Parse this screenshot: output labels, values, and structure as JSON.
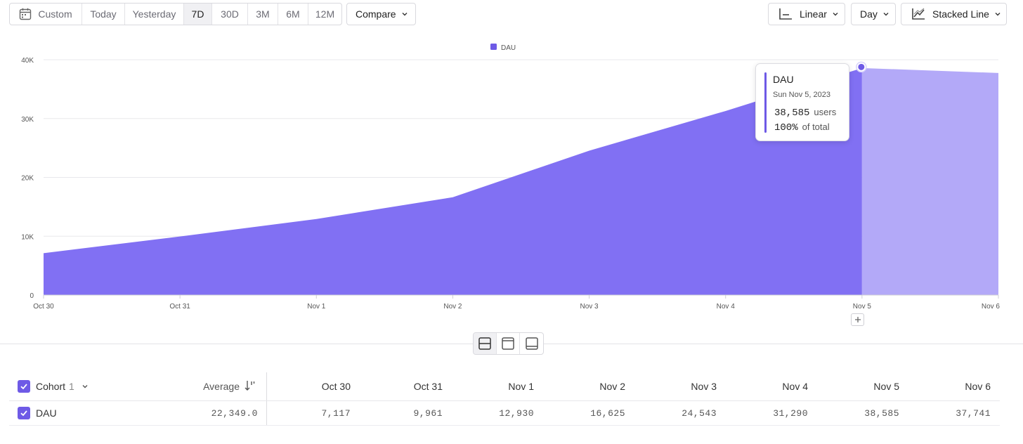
{
  "toolbar": {
    "ranges": [
      {
        "label": "Custom",
        "icon": "calendar-icon"
      },
      {
        "label": "Today"
      },
      {
        "label": "Yesterday"
      },
      {
        "label": "7D"
      },
      {
        "label": "30D"
      },
      {
        "label": "3M"
      },
      {
        "label": "6M"
      },
      {
        "label": "12M"
      }
    ],
    "active_range": "7D",
    "compare_label": "Compare",
    "scale_label": "Linear",
    "interval_label": "Day",
    "chart_type_label": "Stacked Line"
  },
  "chart_data": {
    "type": "area",
    "legend": [
      "DAU"
    ],
    "legend_position": "top-center",
    "x": [
      "Oct 30",
      "Oct 31",
      "Nov 1",
      "Nov 2",
      "Nov 3",
      "Nov 4",
      "Nov 5",
      "Nov 6"
    ],
    "series": [
      {
        "name": "DAU",
        "values": [
          7117,
          9961,
          12930,
          16625,
          24543,
          31290,
          38585,
          37741
        ],
        "color": "#8170f3",
        "incomplete_color": "#b3a9f8"
      }
    ],
    "incomplete_from": "Nov 5",
    "ylim": [
      0,
      40000
    ],
    "yticks": [
      {
        "value": 0,
        "label": "0"
      },
      {
        "value": 10000,
        "label": "10K"
      },
      {
        "value": 20000,
        "label": "20K"
      },
      {
        "value": 30000,
        "label": "30K"
      },
      {
        "value": 40000,
        "label": "40K"
      }
    ],
    "grid": true
  },
  "tooltip": {
    "title": "DAU",
    "date": "Sun Nov 5, 2023",
    "value": "38,585",
    "value_unit": "users",
    "percent": "100%",
    "percent_label": "of total",
    "accent": "#6e5ae6"
  },
  "table": {
    "group_label": "Cohort",
    "group_count": "1",
    "average_label": "Average",
    "columns": [
      "Oct 30",
      "Oct 31",
      "Nov 1",
      "Nov 2",
      "Nov 3",
      "Nov 4",
      "Nov 5",
      "Nov 6"
    ],
    "rows": [
      {
        "label": "DAU",
        "average": "22,349.0",
        "values": [
          "7,117",
          "9,961",
          "12,930",
          "16,625",
          "24,543",
          "31,290",
          "38,585",
          "37,741"
        ]
      }
    ]
  },
  "colors": {
    "accent": "#6e5ae6",
    "area": "#8170f3",
    "area_incomplete": "#b3a9f8"
  }
}
